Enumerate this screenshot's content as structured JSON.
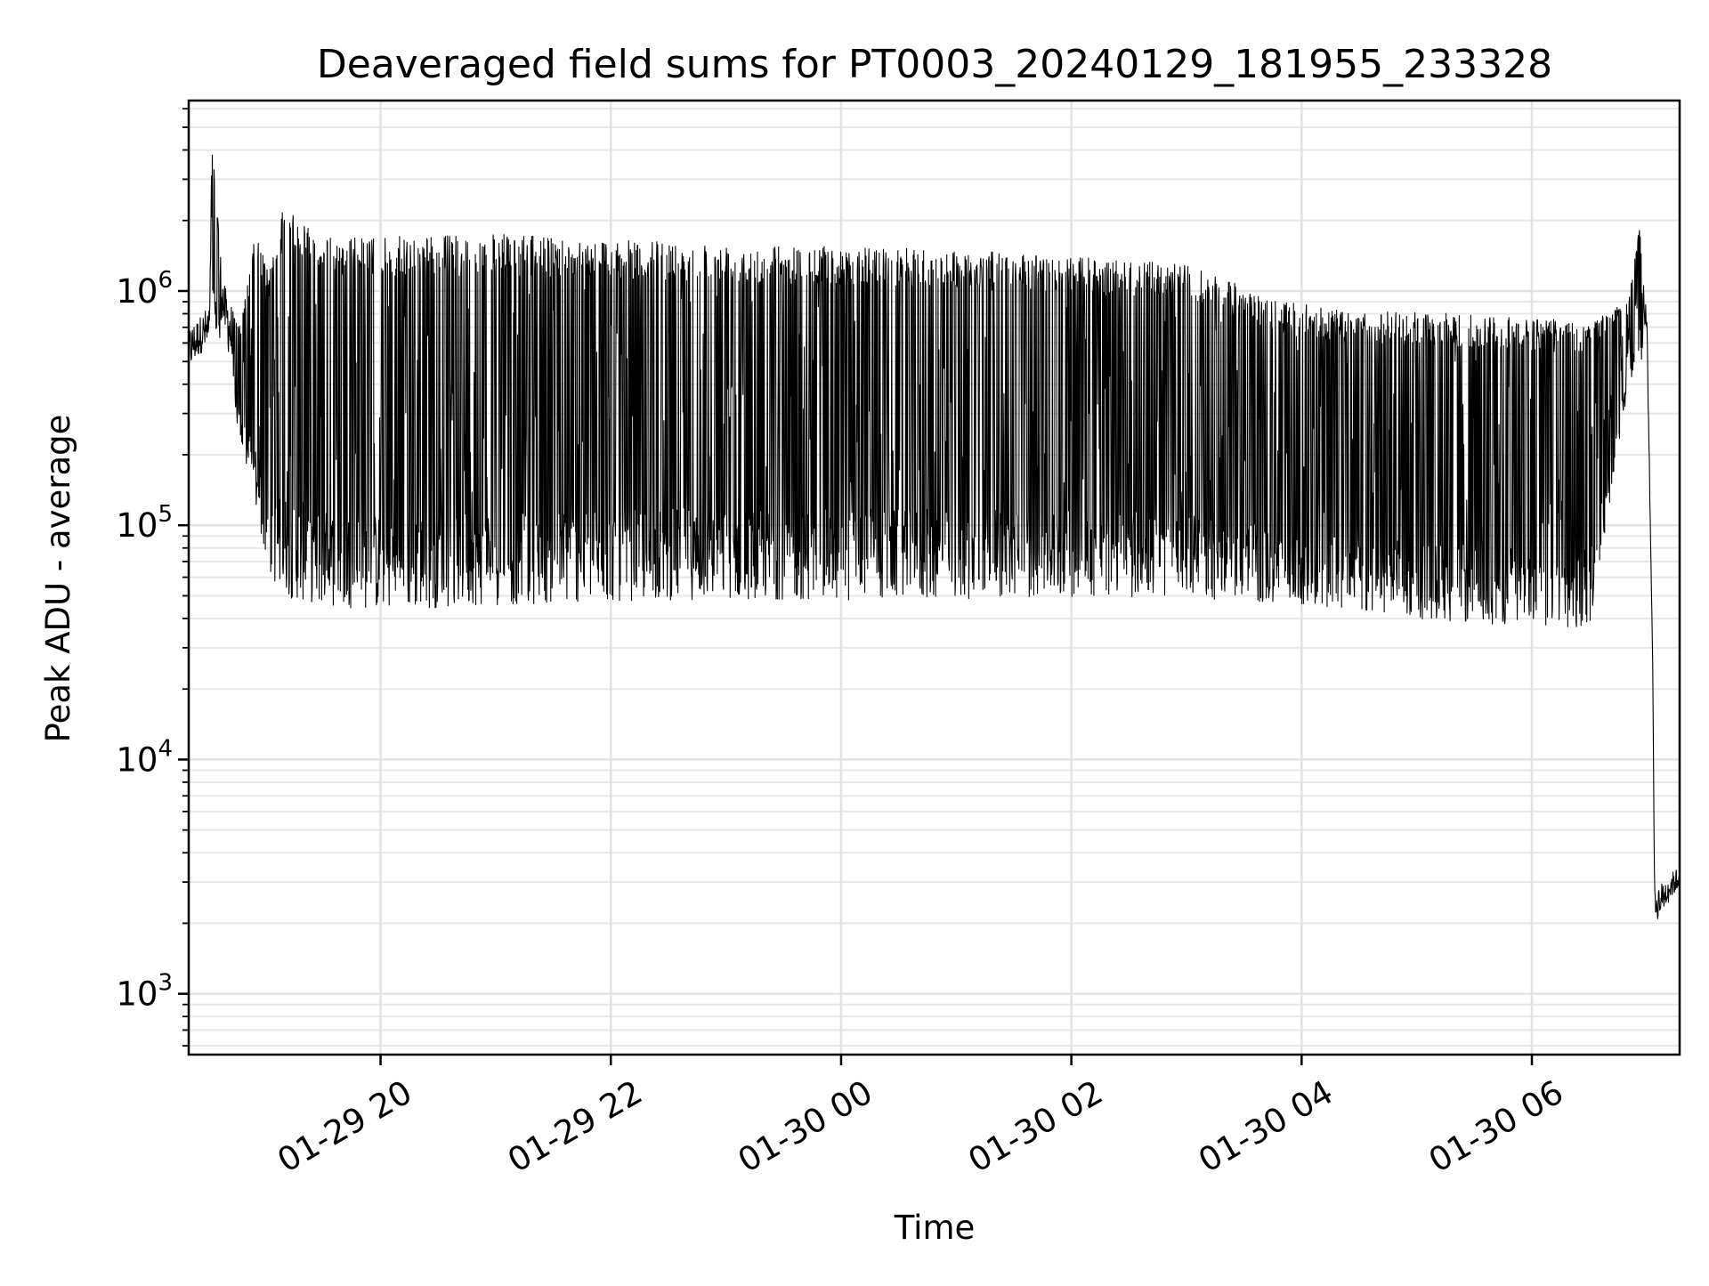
{
  "chart_data": {
    "type": "line",
    "title": "Deaveraged field sums for PT0003_20240129_181955_233328",
    "xlabel": "Time",
    "ylabel": "Peak ADU - average",
    "yscale": "log",
    "ylim": [
      550,
      6500000
    ],
    "xlim": [
      "2024-01-29 18:20",
      "2024-01-30 07:17"
    ],
    "y_ticks": [
      {
        "value": 1000,
        "base": "10",
        "exp": "3"
      },
      {
        "value": 10000,
        "base": "10",
        "exp": "4"
      },
      {
        "value": 100000,
        "base": "10",
        "exp": "5"
      },
      {
        "value": 1000000,
        "base": "10",
        "exp": "6"
      }
    ],
    "x_ticks": [
      {
        "time": "2024-01-29 20:00",
        "label": "01-29 20"
      },
      {
        "time": "2024-01-29 22:00",
        "label": "01-29 22"
      },
      {
        "time": "2024-01-30 00:00",
        "label": "01-30 00"
      },
      {
        "time": "2024-01-30 02:00",
        "label": "01-30 02"
      },
      {
        "time": "2024-01-30 04:00",
        "label": "01-30 04"
      },
      {
        "time": "2024-01-30 06:00",
        "label": "01-30 06"
      }
    ],
    "grid": true,
    "legend": "none",
    "line_color": "#000000",
    "series": [
      {
        "x": [
          "2024-01-29 18:20",
          "2024-01-29 18:27",
          "2024-01-29 18:31",
          "2024-01-29 18:32",
          "2024-01-29 18:38",
          "2024-01-29 18:47",
          "2024-01-29 18:55",
          "2024-01-29 19:02",
          "2024-01-29 19:10",
          "2024-01-29 19:30",
          "2024-01-29 20:00",
          "2024-01-29 21:00",
          "2024-01-29 22:00",
          "2024-01-29 23:00",
          "2024-01-30 00:00",
          "2024-01-30 01:00",
          "2024-01-30 02:00",
          "2024-01-30 03:00",
          "2024-01-30 03:50",
          "2024-01-30 04:30",
          "2024-01-30 05:30",
          "2024-01-30 06:30",
          "2024-01-30 06:50",
          "2024-01-30 06:56",
          "2024-01-30 07:00",
          "2024-01-30 07:03",
          "2024-01-30 07:04",
          "2024-01-30 07:08",
          "2024-01-30 07:13",
          "2024-01-30 07:17"
        ],
        "envelope_low": [
          450000,
          550000,
          500000,
          1000000,
          700000,
          300000,
          150000,
          80000,
          65000,
          60000,
          57000,
          60000,
          62000,
          64000,
          63000,
          64000,
          65000,
          65000,
          60000,
          55000,
          50000,
          48000,
          500000,
          700000,
          600000,
          25000,
          2000,
          2200,
          2600,
          2800
        ],
        "envelope_high": [
          700000,
          800000,
          900000,
          4300000,
          1100000,
          700000,
          1800000,
          1200000,
          2400000,
          1700000,
          1700000,
          1750000,
          1650000,
          1600000,
          1550000,
          1500000,
          1400000,
          1300000,
          900000,
          820000,
          800000,
          750000,
          900000,
          1900000,
          800000,
          25000,
          2800,
          3000,
          3300,
          3500
        ]
      }
    ]
  }
}
